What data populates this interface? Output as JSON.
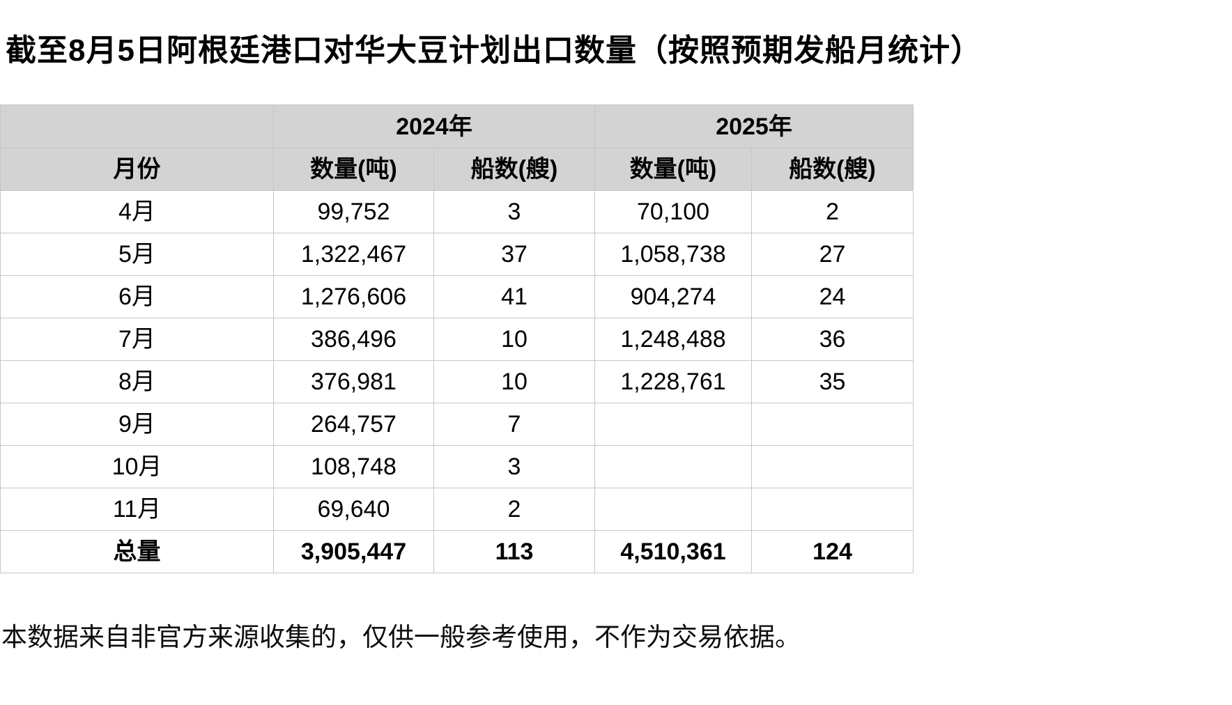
{
  "title": "截至8月5日阿根廷港口对华大豆计划出口数量（按照预期发船月统计）",
  "footnote": "本数据来自非官方来源收集的，仅供一般参考使用，不作为交易依据。",
  "colors": {
    "header_fill": "#d3d3d3",
    "grid_line": "#c6c6c6",
    "text": "#000000"
  },
  "table": {
    "year_row": {
      "blank": "",
      "y2024": "2024年",
      "y2025": "2025年"
    },
    "col_row": [
      "月份",
      "数量(吨)",
      "船数(艘)",
      "数量(吨)",
      "船数(艘)"
    ],
    "rows": [
      [
        "4月",
        "99,752",
        "3",
        "70,100",
        "2"
      ],
      [
        "5月",
        "1,322,467",
        "37",
        "1,058,738",
        "27"
      ],
      [
        "6月",
        "1,276,606",
        "41",
        "904,274",
        "24"
      ],
      [
        "7月",
        "386,496",
        "10",
        "1,248,488",
        "36"
      ],
      [
        "8月",
        "376,981",
        "10",
        "1,228,761",
        "35"
      ],
      [
        "9月",
        "264,757",
        "7",
        "",
        ""
      ],
      [
        "10月",
        "108,748",
        "3",
        "",
        ""
      ],
      [
        "11月",
        "69,640",
        "2",
        "",
        ""
      ]
    ],
    "total": [
      "总量",
      "3,905,447",
      "113",
      "4,510,361",
      "124"
    ]
  },
  "chart_data": {
    "type": "table",
    "title": "截至8月5日阿根廷港口对华大豆计划出口数量（按照预期发船月统计）",
    "column_groups": [
      "",
      "2024年",
      "2024年",
      "2025年",
      "2025年"
    ],
    "columns": [
      "月份",
      "2024年 数量(吨)",
      "2024年 船数(艘)",
      "2025年 数量(吨)",
      "2025年 船数(艘)"
    ],
    "rows": [
      [
        "4月",
        99752,
        3,
        70100,
        2
      ],
      [
        "5月",
        1322467,
        37,
        1058738,
        27
      ],
      [
        "6月",
        1276606,
        41,
        904274,
        24
      ],
      [
        "7月",
        386496,
        10,
        1248488,
        36
      ],
      [
        "8月",
        376981,
        10,
        1228761,
        35
      ],
      [
        "9月",
        264757,
        7,
        null,
        null
      ],
      [
        "10月",
        108748,
        3,
        null,
        null
      ],
      [
        "11月",
        69640,
        2,
        null,
        null
      ],
      [
        "总量",
        3905447,
        113,
        4510361,
        124
      ]
    ],
    "footnote": "本数据来自非官方来源收集的，仅供一般参考使用，不作为交易依据。"
  }
}
